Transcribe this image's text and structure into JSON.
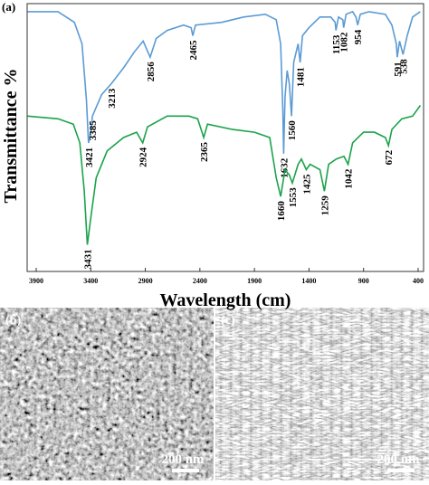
{
  "chart_data": {
    "type": "line",
    "panel_label": "(a)",
    "xlabel": "Wavelength (cm)",
    "ylabel": "Transmittance %",
    "xlim": [
      3983,
      350
    ],
    "ylim": [
      0,
      100
    ],
    "xticks": [
      3900,
      3400,
      2900,
      2400,
      1900,
      1400,
      900,
      400
    ],
    "series": [
      {
        "color": "#5b9bd5",
        "x": [
          3980,
          3700,
          3550,
          3480,
          3440,
          3421,
          3400,
          3385,
          3300,
          3213,
          3100,
          3000,
          2920,
          2856,
          2800,
          2700,
          2550,
          2480,
          2465,
          2440,
          2200,
          2000,
          1800,
          1700,
          1660,
          1640,
          1632,
          1620,
          1600,
          1580,
          1560,
          1540,
          1500,
          1481,
          1460,
          1400,
          1300,
          1200,
          1160,
          1153,
          1130,
          1090,
          1082,
          1060,
          1000,
          970,
          954,
          930,
          850,
          700,
          640,
          600,
          591,
          570,
          538,
          500,
          450,
          380
        ],
        "values": [
          97,
          97,
          93,
          85,
          64,
          48,
          52,
          58,
          66,
          70,
          76,
          82,
          86,
          80,
          87,
          90,
          92,
          91,
          88,
          92,
          93,
          95,
          96,
          94,
          85,
          60,
          44,
          65,
          75,
          70,
          58,
          78,
          85,
          78,
          88,
          91,
          95,
          95,
          93,
          90,
          95,
          94,
          91,
          96,
          97,
          95,
          92,
          96,
          97,
          96,
          92,
          85,
          80,
          86,
          81,
          88,
          95,
          97
        ],
        "peaks": [
          3421,
          3385,
          3213,
          2856,
          2465,
          1632,
          1560,
          1481,
          1153,
          1082,
          954,
          591,
          538
        ]
      },
      {
        "color": "#1aa34a",
        "x": [
          3980,
          3700,
          3560,
          3500,
          3460,
          3431,
          3400,
          3350,
          3250,
          3100,
          2980,
          2924,
          2880,
          2700,
          2500,
          2420,
          2365,
          2330,
          2100,
          1900,
          1760,
          1700,
          1660,
          1620,
          1580,
          1553,
          1500,
          1470,
          1425,
          1390,
          1300,
          1259,
          1220,
          1150,
          1080,
          1042,
          1000,
          900,
          800,
          700,
          672,
          640,
          550,
          450,
          380
        ],
        "values": [
          58,
          57,
          55,
          48,
          30,
          10,
          20,
          35,
          45,
          50,
          52,
          48,
          54,
          58,
          58,
          57,
          50,
          55,
          53,
          52,
          50,
          35,
          28,
          38,
          36,
          33,
          40,
          42,
          38,
          40,
          38,
          30,
          40,
          42,
          43,
          40,
          48,
          52,
          52,
          50,
          47,
          53,
          57,
          58,
          62
        ],
        "peaks": [
          3431,
          2924,
          2365,
          1660,
          1553,
          1425,
          1259,
          1042,
          672
        ]
      }
    ]
  },
  "images": [
    {
      "label": "(b)",
      "scale": "200 nm"
    },
    {
      "label": "(c)",
      "scale": "200 nm"
    }
  ]
}
